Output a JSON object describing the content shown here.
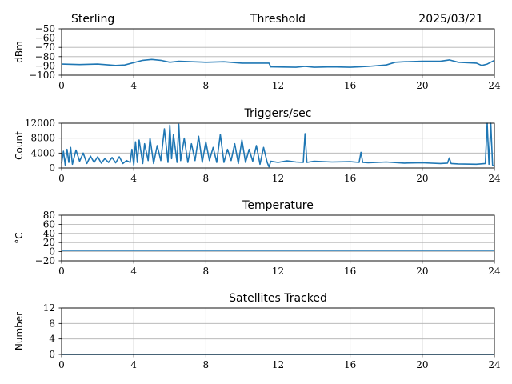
{
  "header": {
    "left": "Sterling",
    "right": "2025/03/21"
  },
  "colors": {
    "line": "#1f77b4",
    "grid": "#b0b0b0",
    "axes": "#000000"
  },
  "chart_data": [
    {
      "type": "line",
      "title": "Threshold",
      "ylabel": "dBm",
      "xlim": [
        0,
        24
      ],
      "ylim": [
        -100,
        -50
      ],
      "xticks": [
        "0",
        "4",
        "8",
        "12",
        "16",
        "20",
        "24"
      ],
      "yticks": [
        "−100",
        "−90",
        "−80",
        "−70",
        "−60",
        "−50"
      ],
      "grid": true,
      "series": [
        {
          "values": [
            [
              0,
              -88
            ],
            [
              1,
              -88.5
            ],
            [
              2,
              -88
            ],
            [
              3,
              -89.5
            ],
            [
              3.5,
              -89
            ],
            [
              4.5,
              -84
            ],
            [
              5,
              -83
            ],
            [
              5.5,
              -84
            ],
            [
              6,
              -86
            ],
            [
              6.5,
              -85
            ],
            [
              8,
              -86
            ],
            [
              9,
              -85.5
            ],
            [
              10,
              -87
            ],
            [
              11.5,
              -87
            ],
            [
              11.6,
              -91
            ],
            [
              13,
              -91.5
            ],
            [
              13.5,
              -90.5
            ],
            [
              14,
              -91.5
            ],
            [
              15,
              -91
            ],
            [
              16,
              -91.5
            ],
            [
              16.5,
              -91
            ],
            [
              17,
              -90.5
            ],
            [
              18,
              -89
            ],
            [
              18.5,
              -86
            ],
            [
              19,
              -85.5
            ],
            [
              20,
              -85
            ],
            [
              21,
              -85
            ],
            [
              21.5,
              -83.5
            ],
            [
              22,
              -86
            ],
            [
              23,
              -87
            ],
            [
              23.3,
              -89.5
            ],
            [
              23.6,
              -88
            ],
            [
              24,
              -84
            ]
          ]
        }
      ]
    },
    {
      "type": "line",
      "title": "Triggers/sec",
      "ylabel": "Count",
      "xlim": [
        0,
        24
      ],
      "ylim": [
        0,
        12000
      ],
      "xticks": [
        "0",
        "4",
        "8",
        "12",
        "16",
        "20",
        "24"
      ],
      "yticks": [
        "0",
        "4000",
        "8000",
        "12000"
      ],
      "grid": true,
      "series": [
        {
          "values": [
            [
              0,
              1200
            ],
            [
              0.1,
              4500
            ],
            [
              0.2,
              800
            ],
            [
              0.3,
              5000
            ],
            [
              0.4,
              1500
            ],
            [
              0.5,
              5500
            ],
            [
              0.6,
              1000
            ],
            [
              0.8,
              4800
            ],
            [
              1.0,
              1800
            ],
            [
              1.2,
              4000
            ],
            [
              1.4,
              1200
            ],
            [
              1.6,
              3200
            ],
            [
              1.8,
              1500
            ],
            [
              2.0,
              3000
            ],
            [
              2.2,
              1300
            ],
            [
              2.4,
              2500
            ],
            [
              2.6,
              1500
            ],
            [
              2.8,
              2800
            ],
            [
              3.0,
              1400
            ],
            [
              3.2,
              3000
            ],
            [
              3.4,
              1200
            ],
            [
              3.6,
              2000
            ],
            [
              3.8,
              1500
            ],
            [
              3.9,
              5000
            ],
            [
              4.0,
              800
            ],
            [
              4.1,
              7000
            ],
            [
              4.2,
              1500
            ],
            [
              4.3,
              7500
            ],
            [
              4.5,
              1200
            ],
            [
              4.6,
              6500
            ],
            [
              4.8,
              2000
            ],
            [
              4.9,
              8000
            ],
            [
              5.1,
              1200
            ],
            [
              5.3,
              6000
            ],
            [
              5.5,
              2000
            ],
            [
              5.7,
              10500
            ],
            [
              5.9,
              1500
            ],
            [
              6.0,
              11500
            ],
            [
              6.1,
              2500
            ],
            [
              6.2,
              9000
            ],
            [
              6.4,
              1500
            ],
            [
              6.5,
              11700
            ],
            [
              6.6,
              2000
            ],
            [
              6.8,
              8000
            ],
            [
              7.0,
              1500
            ],
            [
              7.2,
              6500
            ],
            [
              7.4,
              2000
            ],
            [
              7.6,
              8500
            ],
            [
              7.8,
              1500
            ],
            [
              8.0,
              7000
            ],
            [
              8.2,
              2000
            ],
            [
              8.4,
              5500
            ],
            [
              8.6,
              1500
            ],
            [
              8.8,
              9000
            ],
            [
              9.0,
              1500
            ],
            [
              9.2,
              5000
            ],
            [
              9.4,
              2000
            ],
            [
              9.6,
              6500
            ],
            [
              9.8,
              1200
            ],
            [
              10.0,
              7500
            ],
            [
              10.2,
              1500
            ],
            [
              10.4,
              5000
            ],
            [
              10.6,
              1800
            ],
            [
              10.8,
              6000
            ],
            [
              11.0,
              1000
            ],
            [
              11.2,
              5500
            ],
            [
              11.4,
              1500
            ],
            [
              11.5,
              300
            ],
            [
              11.6,
              1800
            ],
            [
              12.0,
              1500
            ],
            [
              12.5,
              1900
            ],
            [
              13.0,
              1600
            ],
            [
              13.4,
              1500
            ],
            [
              13.5,
              9200
            ],
            [
              13.6,
              1500
            ],
            [
              14.0,
              1800
            ],
            [
              15.0,
              1600
            ],
            [
              16.0,
              1700
            ],
            [
              16.5,
              1500
            ],
            [
              16.6,
              4200
            ],
            [
              16.7,
              1500
            ],
            [
              17.0,
              1400
            ],
            [
              18.0,
              1600
            ],
            [
              19.0,
              1300
            ],
            [
              20.0,
              1400
            ],
            [
              21.0,
              1200
            ],
            [
              21.4,
              1300
            ],
            [
              21.5,
              2700
            ],
            [
              21.6,
              1200
            ],
            [
              22.0,
              1100
            ],
            [
              23.0,
              1000
            ],
            [
              23.5,
              1200
            ],
            [
              23.6,
              12000
            ],
            [
              23.7,
              1000
            ],
            [
              23.8,
              12000
            ],
            [
              23.9,
              800
            ],
            [
              24,
              400
            ]
          ]
        }
      ]
    },
    {
      "type": "line",
      "title": "Temperature",
      "ylabel": "°C",
      "xlim": [
        0,
        24
      ],
      "ylim": [
        -20,
        80
      ],
      "xticks": [
        "0",
        "4",
        "8",
        "12",
        "16",
        "20",
        "24"
      ],
      "yticks": [
        "−20",
        "0",
        "20",
        "40",
        "60",
        "80"
      ],
      "grid": true,
      "series": [
        {
          "values": [
            [
              0,
              3
            ],
            [
              24,
              3
            ]
          ]
        }
      ]
    },
    {
      "type": "line",
      "title": "Satellites Tracked",
      "ylabel": "Number",
      "xlim": [
        0,
        24
      ],
      "ylim": [
        0,
        12
      ],
      "xticks": [
        "0",
        "4",
        "8",
        "12",
        "16",
        "20",
        "24"
      ],
      "yticks": [
        "0",
        "4",
        "8",
        "12"
      ],
      "grid": true,
      "series": [
        {
          "values": [
            [
              0,
              0
            ],
            [
              24,
              0
            ]
          ]
        }
      ]
    }
  ]
}
